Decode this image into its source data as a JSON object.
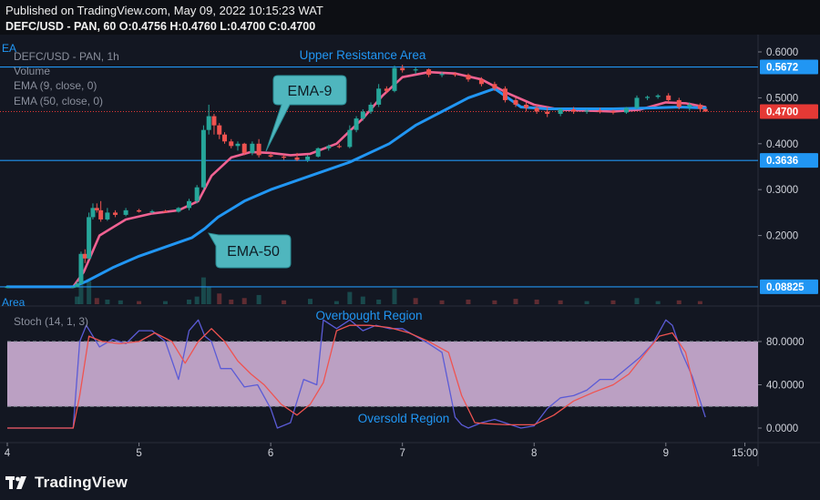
{
  "header": {
    "published": "Published on TradingView.com, May 09, 2022 10:15:23 WAT",
    "ohlc": "DEFC/USD - PAN, 60  O:0.4756  H:0.4760  L:0.4700  C:0.4700"
  },
  "legend": {
    "cut_label": "EA",
    "symbol": "DEFC/USD - PAN, 1h",
    "volume": "Volume",
    "ema9": "EMA (9, close, 0)",
    "ema50": "EMA (50, close, 0)",
    "volume_area": "Area",
    "stoch": "Stoch (14, 1, 3)"
  },
  "annotations": {
    "upper_resistance": "Upper Resistance Area",
    "ema9_callout": "EMA-9",
    "ema50_callout": "EMA-50",
    "overbought": "Overbought Region",
    "oversold": "Oversold Region"
  },
  "footer": {
    "brand": "TradingView"
  },
  "colors": {
    "background": "#131722",
    "candle_up": "#26a69a",
    "candle_down": "#ef5350",
    "ema9": "#f06292",
    "ema50": "#2196f3",
    "level_line": "#2196f3",
    "current_price": "#e53935",
    "stoch_k": "#5b5bd6",
    "stoch_d": "#ef5350",
    "stoch_band": "#e1bee7",
    "callout": "#4fb6be"
  },
  "chart_data": [
    {
      "type": "candlestick",
      "title": "DEFC/USD - PAN, 1h",
      "ylim": [
        0.085,
        0.61
      ],
      "y_ticks": [
        "0.6000",
        "0.5000",
        "0.4000",
        "0.3000",
        "0.2000"
      ],
      "y_tick_values": [
        0.6,
        0.5,
        0.4,
        0.3,
        0.2
      ],
      "price_labels": [
        {
          "text": "0.5672",
          "value": 0.5672,
          "kind": "resistance"
        },
        {
          "text": "0.4700",
          "value": 0.47,
          "kind": "current"
        },
        {
          "text": "0.3636",
          "value": 0.3636,
          "kind": "support"
        },
        {
          "text": "0.08825",
          "value": 0.08825,
          "kind": "support"
        }
      ],
      "x_ticks": [
        "4",
        "5",
        "6",
        "7",
        "8",
        "9",
        "15:00"
      ],
      "x_tick_values": [
        4,
        5,
        6,
        7,
        8,
        9,
        9.6
      ],
      "x_range": [
        4,
        9.7
      ],
      "candles": [
        {
          "t": 4.0,
          "o": 0.0882,
          "h": 0.0884,
          "l": 0.088,
          "c": 0.0882
        },
        {
          "t": 4.5,
          "o": 0.0882,
          "h": 0.0884,
          "l": 0.088,
          "c": 0.0882
        },
        {
          "t": 4.53,
          "o": 0.0882,
          "h": 0.1,
          "l": 0.087,
          "c": 0.095
        },
        {
          "t": 4.56,
          "o": 0.095,
          "h": 0.165,
          "l": 0.094,
          "c": 0.16
        },
        {
          "t": 4.59,
          "o": 0.16,
          "h": 0.17,
          "l": 0.14,
          "c": 0.15
        },
        {
          "t": 4.62,
          "o": 0.15,
          "h": 0.25,
          "l": 0.148,
          "c": 0.24
        },
        {
          "t": 4.65,
          "o": 0.24,
          "h": 0.27,
          "l": 0.235,
          "c": 0.26
        },
        {
          "t": 4.68,
          "o": 0.26,
          "h": 0.27,
          "l": 0.25,
          "c": 0.255
        },
        {
          "t": 4.71,
          "o": 0.255,
          "h": 0.275,
          "l": 0.23,
          "c": 0.235
        },
        {
          "t": 4.76,
          "o": 0.235,
          "h": 0.26,
          "l": 0.232,
          "c": 0.25
        },
        {
          "t": 4.82,
          "o": 0.25,
          "h": 0.255,
          "l": 0.24,
          "c": 0.245
        },
        {
          "t": 4.9,
          "o": 0.245,
          "h": 0.26,
          "l": 0.242,
          "c": 0.255
        },
        {
          "t": 5.0,
          "o": 0.255,
          "h": 0.258,
          "l": 0.25,
          "c": 0.252
        },
        {
          "t": 5.1,
          "o": 0.252,
          "h": 0.256,
          "l": 0.248,
          "c": 0.253
        },
        {
          "t": 5.2,
          "o": 0.253,
          "h": 0.256,
          "l": 0.25,
          "c": 0.252
        },
        {
          "t": 5.3,
          "o": 0.252,
          "h": 0.262,
          "l": 0.25,
          "c": 0.26
        },
        {
          "t": 5.38,
          "o": 0.26,
          "h": 0.28,
          "l": 0.255,
          "c": 0.275
        },
        {
          "t": 5.44,
          "o": 0.275,
          "h": 0.31,
          "l": 0.27,
          "c": 0.305
        },
        {
          "t": 5.49,
          "o": 0.305,
          "h": 0.44,
          "l": 0.3,
          "c": 0.43
        },
        {
          "t": 5.53,
          "o": 0.43,
          "h": 0.485,
          "l": 0.42,
          "c": 0.46
        },
        {
          "t": 5.57,
          "o": 0.46,
          "h": 0.465,
          "l": 0.42,
          "c": 0.44
        },
        {
          "t": 5.61,
          "o": 0.44,
          "h": 0.445,
          "l": 0.41,
          "c": 0.42
        },
        {
          "t": 5.65,
          "o": 0.42,
          "h": 0.425,
          "l": 0.4,
          "c": 0.405
        },
        {
          "t": 5.7,
          "o": 0.405,
          "h": 0.41,
          "l": 0.39,
          "c": 0.395
        },
        {
          "t": 5.75,
          "o": 0.395,
          "h": 0.405,
          "l": 0.385,
          "c": 0.4
        },
        {
          "t": 5.8,
          "o": 0.4,
          "h": 0.402,
          "l": 0.375,
          "c": 0.38
        },
        {
          "t": 5.86,
          "o": 0.38,
          "h": 0.405,
          "l": 0.375,
          "c": 0.4
        },
        {
          "t": 5.91,
          "o": 0.4,
          "h": 0.41,
          "l": 0.37,
          "c": 0.375
        },
        {
          "t": 6.0,
          "o": 0.375,
          "h": 0.38,
          "l": 0.37,
          "c": 0.372
        },
        {
          "t": 6.1,
          "o": 0.372,
          "h": 0.376,
          "l": 0.365,
          "c": 0.37
        },
        {
          "t": 6.2,
          "o": 0.37,
          "h": 0.38,
          "l": 0.362,
          "c": 0.365
        },
        {
          "t": 6.28,
          "o": 0.365,
          "h": 0.375,
          "l": 0.36,
          "c": 0.372
        },
        {
          "t": 6.36,
          "o": 0.372,
          "h": 0.392,
          "l": 0.37,
          "c": 0.39
        },
        {
          "t": 6.44,
          "o": 0.39,
          "h": 0.398,
          "l": 0.385,
          "c": 0.395
        },
        {
          "t": 6.52,
          "o": 0.395,
          "h": 0.4,
          "l": 0.39,
          "c": 0.393
        },
        {
          "t": 6.6,
          "o": 0.393,
          "h": 0.44,
          "l": 0.39,
          "c": 0.43
        },
        {
          "t": 6.65,
          "o": 0.43,
          "h": 0.46,
          "l": 0.425,
          "c": 0.455
        },
        {
          "t": 6.7,
          "o": 0.455,
          "h": 0.475,
          "l": 0.45,
          "c": 0.47
        },
        {
          "t": 6.76,
          "o": 0.47,
          "h": 0.49,
          "l": 0.465,
          "c": 0.485
        },
        {
          "t": 6.82,
          "o": 0.485,
          "h": 0.53,
          "l": 0.48,
          "c": 0.52
        },
        {
          "t": 6.88,
          "o": 0.52,
          "h": 0.525,
          "l": 0.51,
          "c": 0.515
        },
        {
          "t": 6.94,
          "o": 0.515,
          "h": 0.57,
          "l": 0.512,
          "c": 0.565
        },
        {
          "t": 7.0,
          "o": 0.565,
          "h": 0.572,
          "l": 0.555,
          "c": 0.56
        },
        {
          "t": 7.1,
          "o": 0.56,
          "h": 0.567,
          "l": 0.552,
          "c": 0.562
        },
        {
          "t": 7.2,
          "o": 0.562,
          "h": 0.564,
          "l": 0.545,
          "c": 0.55
        },
        {
          "t": 7.3,
          "o": 0.55,
          "h": 0.556,
          "l": 0.545,
          "c": 0.552
        },
        {
          "t": 7.4,
          "o": 0.552,
          "h": 0.556,
          "l": 0.546,
          "c": 0.55
        },
        {
          "t": 7.5,
          "o": 0.55,
          "h": 0.553,
          "l": 0.535,
          "c": 0.54
        },
        {
          "t": 7.6,
          "o": 0.54,
          "h": 0.545,
          "l": 0.525,
          "c": 0.53
        },
        {
          "t": 7.7,
          "o": 0.53,
          "h": 0.535,
          "l": 0.515,
          "c": 0.52
        },
        {
          "t": 7.78,
          "o": 0.52,
          "h": 0.525,
          "l": 0.49,
          "c": 0.495
        },
        {
          "t": 7.86,
          "o": 0.495,
          "h": 0.5,
          "l": 0.48,
          "c": 0.485
        },
        {
          "t": 7.94,
          "o": 0.485,
          "h": 0.49,
          "l": 0.47,
          "c": 0.478
        },
        {
          "t": 8.02,
          "o": 0.478,
          "h": 0.485,
          "l": 0.465,
          "c": 0.47
        },
        {
          "t": 8.1,
          "o": 0.47,
          "h": 0.48,
          "l": 0.458,
          "c": 0.465
        },
        {
          "t": 8.2,
          "o": 0.465,
          "h": 0.478,
          "l": 0.46,
          "c": 0.475
        },
        {
          "t": 8.3,
          "o": 0.475,
          "h": 0.48,
          "l": 0.465,
          "c": 0.47
        },
        {
          "t": 8.4,
          "o": 0.47,
          "h": 0.476,
          "l": 0.465,
          "c": 0.472
        },
        {
          "t": 8.5,
          "o": 0.472,
          "h": 0.478,
          "l": 0.466,
          "c": 0.47
        },
        {
          "t": 8.6,
          "o": 0.47,
          "h": 0.474,
          "l": 0.464,
          "c": 0.468
        },
        {
          "t": 8.7,
          "o": 0.468,
          "h": 0.48,
          "l": 0.465,
          "c": 0.478
        },
        {
          "t": 8.78,
          "o": 0.478,
          "h": 0.505,
          "l": 0.475,
          "c": 0.5
        },
        {
          "t": 8.86,
          "o": 0.5,
          "h": 0.505,
          "l": 0.495,
          "c": 0.502
        },
        {
          "t": 8.94,
          "o": 0.502,
          "h": 0.508,
          "l": 0.498,
          "c": 0.505
        },
        {
          "t": 9.02,
          "o": 0.505,
          "h": 0.51,
          "l": 0.49,
          "c": 0.495
        },
        {
          "t": 9.1,
          "o": 0.495,
          "h": 0.5,
          "l": 0.475,
          "c": 0.48
        },
        {
          "t": 9.18,
          "o": 0.48,
          "h": 0.49,
          "l": 0.472,
          "c": 0.485
        },
        {
          "t": 9.26,
          "o": 0.485,
          "h": 0.488,
          "l": 0.47,
          "c": 0.476
        },
        {
          "t": 9.3,
          "o": 0.4756,
          "h": 0.476,
          "l": 0.47,
          "c": 0.47
        }
      ],
      "series": [
        {
          "name": "EMA-9",
          "x": [
            4.0,
            4.5,
            4.58,
            4.7,
            4.9,
            5.1,
            5.3,
            5.45,
            5.55,
            5.7,
            5.85,
            6.0,
            6.15,
            6.3,
            6.5,
            6.7,
            6.85,
            7.0,
            7.2,
            7.4,
            7.6,
            7.8,
            8.0,
            8.2,
            8.4,
            8.6,
            8.8,
            9.0,
            9.15,
            9.3
          ],
          "values": [
            0.0882,
            0.0882,
            0.12,
            0.2,
            0.235,
            0.248,
            0.255,
            0.275,
            0.33,
            0.37,
            0.382,
            0.38,
            0.375,
            0.378,
            0.4,
            0.455,
            0.505,
            0.545,
            0.556,
            0.553,
            0.54,
            0.51,
            0.485,
            0.474,
            0.472,
            0.47,
            0.474,
            0.49,
            0.488,
            0.48
          ]
        },
        {
          "name": "EMA-50",
          "x": [
            4.0,
            4.5,
            4.6,
            4.8,
            5.0,
            5.2,
            5.4,
            5.5,
            5.6,
            5.8,
            6.0,
            6.3,
            6.6,
            6.9,
            7.1,
            7.3,
            7.5,
            7.7,
            7.9,
            8.1,
            8.3,
            8.6,
            8.9,
            9.1,
            9.3
          ],
          "values": [
            0.0882,
            0.0882,
            0.1,
            0.13,
            0.155,
            0.175,
            0.195,
            0.215,
            0.24,
            0.275,
            0.3,
            0.33,
            0.36,
            0.4,
            0.44,
            0.47,
            0.5,
            0.52,
            0.48,
            0.476,
            0.476,
            0.476,
            0.478,
            0.48,
            0.478
          ]
        }
      ]
    },
    {
      "type": "bar",
      "title": "Volume",
      "x": [
        4.53,
        4.56,
        4.62,
        4.68,
        4.76,
        4.86,
        5.0,
        5.2,
        5.38,
        5.44,
        5.49,
        5.53,
        5.61,
        5.7,
        5.8,
        5.91,
        6.1,
        6.3,
        6.5,
        6.6,
        6.7,
        6.82,
        6.94,
        7.1,
        7.3,
        7.5,
        7.7,
        7.86,
        8.02,
        8.2,
        8.4,
        8.6,
        8.78,
        8.94,
        9.1,
        9.26
      ],
      "values": [
        10,
        50,
        30,
        8,
        6,
        5,
        4,
        4,
        6,
        10,
        35,
        22,
        14,
        6,
        8,
        12,
        5,
        7,
        4,
        16,
        10,
        6,
        20,
        8,
        5,
        6,
        5,
        7,
        6,
        5,
        4,
        5,
        8,
        4,
        5,
        4
      ],
      "colors": [
        "up",
        "up",
        "up",
        "down",
        "up",
        "up",
        "down",
        "up",
        "up",
        "up",
        "up",
        "up",
        "down",
        "down",
        "down",
        "up",
        "down",
        "up",
        "up",
        "up",
        "up",
        "up",
        "up",
        "down",
        "down",
        "down",
        "down",
        "down",
        "down",
        "down",
        "up",
        "down",
        "up",
        "up",
        "down",
        "down"
      ]
    },
    {
      "type": "line",
      "title": "Stoch (14, 1, 3)",
      "y_ticks": [
        "80.0000",
        "40.0000",
        "0.0000"
      ],
      "y_tick_values": [
        80,
        40,
        0
      ],
      "ylim": [
        -12,
        105
      ],
      "overbought": 80,
      "oversold": 20,
      "series": [
        {
          "name": "%K",
          "x": [
            4.0,
            4.5,
            4.55,
            4.6,
            4.7,
            4.8,
            4.9,
            5.0,
            5.1,
            5.2,
            5.3,
            5.38,
            5.45,
            5.5,
            5.55,
            5.62,
            5.7,
            5.8,
            5.9,
            6.0,
            6.05,
            6.15,
            6.25,
            6.35,
            6.4,
            6.5,
            6.6,
            6.7,
            6.8,
            6.9,
            7.0,
            7.1,
            7.2,
            7.3,
            7.4,
            7.45,
            7.5,
            7.6,
            7.7,
            7.8,
            7.9,
            8.0,
            8.1,
            8.2,
            8.3,
            8.4,
            8.5,
            8.6,
            8.7,
            8.8,
            8.9,
            9.0,
            9.05,
            9.12,
            9.2,
            9.3
          ],
          "values": [
            0,
            0,
            80,
            95,
            75,
            82,
            78,
            90,
            90,
            80,
            45,
            90,
            100,
            85,
            80,
            55,
            55,
            38,
            40,
            18,
            0,
            5,
            45,
            40,
            100,
            92,
            100,
            90,
            95,
            92,
            92,
            85,
            78,
            70,
            10,
            3,
            0,
            5,
            8,
            4,
            0,
            2,
            18,
            28,
            30,
            35,
            45,
            45,
            55,
            65,
            78,
            100,
            95,
            70,
            48,
            10
          ]
        },
        {
          "name": "%D",
          "x": [
            4.0,
            4.5,
            4.55,
            4.62,
            4.72,
            4.85,
            5.0,
            5.12,
            5.25,
            5.35,
            5.45,
            5.55,
            5.65,
            5.75,
            5.85,
            5.95,
            6.08,
            6.2,
            6.3,
            6.4,
            6.5,
            6.6,
            6.75,
            6.9,
            7.05,
            7.2,
            7.35,
            7.45,
            7.55,
            7.65,
            7.8,
            8.0,
            8.15,
            8.3,
            8.45,
            8.6,
            8.72,
            8.85,
            8.95,
            9.05,
            9.15,
            9.25
          ],
          "values": [
            0,
            0,
            30,
            85,
            80,
            78,
            80,
            88,
            80,
            60,
            80,
            92,
            80,
            62,
            50,
            40,
            22,
            12,
            22,
            42,
            90,
            95,
            95,
            93,
            88,
            80,
            70,
            30,
            5,
            4,
            3,
            3,
            12,
            25,
            33,
            40,
            50,
            70,
            85,
            88,
            70,
            20
          ]
        }
      ]
    }
  ]
}
